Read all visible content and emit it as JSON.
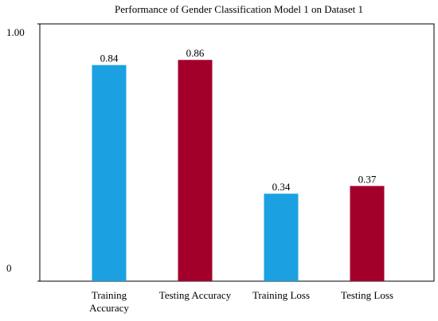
{
  "chart_data": {
    "type": "bar",
    "title": "Performance of Gender Classification Model 1 on Dataset 1",
    "categories": [
      "Training Accuracy",
      "Testing Accuracy",
      "Training Loss",
      "Testing Loss"
    ],
    "values": [
      0.84,
      0.86,
      0.34,
      0.37
    ],
    "colors": [
      "#1ba1e2",
      "#a2002b",
      "#1ba1e2",
      "#a2002b"
    ],
    "ylim": [
      0,
      1
    ],
    "yticks": [
      0,
      {
        "value": 1,
        "label": "1.00"
      }
    ],
    "grid": false
  }
}
